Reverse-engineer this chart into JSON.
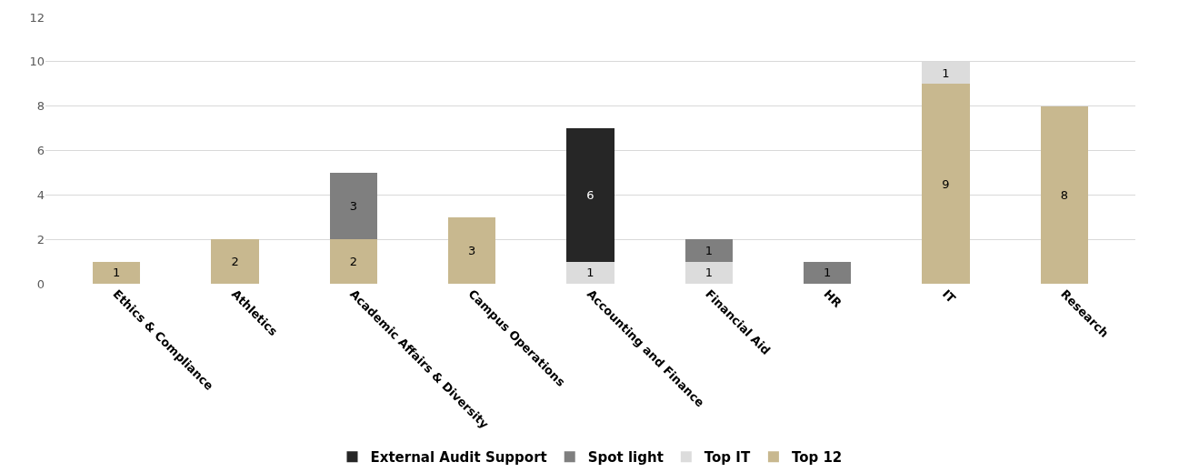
{
  "chart_data": {
    "type": "bar",
    "stacked": true,
    "categories": [
      "Ethics & Compliance",
      "Athletics",
      "Academic Affairs & Diversity",
      "Campus Operations",
      "Accounting and Finance",
      "Financial Aid",
      "HR",
      "IT",
      "Research"
    ],
    "series": [
      {
        "name": "Top 12",
        "color": "#c8b88f",
        "values": [
          1,
          2,
          2,
          3,
          null,
          null,
          null,
          9,
          8
        ]
      },
      {
        "name": "Top IT",
        "color": "#dcdcdc",
        "values": [
          null,
          null,
          null,
          null,
          1,
          1,
          null,
          1,
          null
        ]
      },
      {
        "name": "Spot light",
        "color": "#7f7f7f",
        "values": [
          null,
          null,
          3,
          null,
          null,
          1,
          1,
          null,
          null
        ]
      },
      {
        "name": "External Audit Support",
        "color": "#262626",
        "values": [
          null,
          null,
          null,
          null,
          6,
          null,
          null,
          null,
          null
        ]
      }
    ],
    "ylim": [
      0,
      12
    ],
    "yticks": [
      0,
      2,
      4,
      6,
      8,
      10,
      12
    ],
    "grid": "y",
    "legend": "bottom",
    "data_labels": true
  }
}
